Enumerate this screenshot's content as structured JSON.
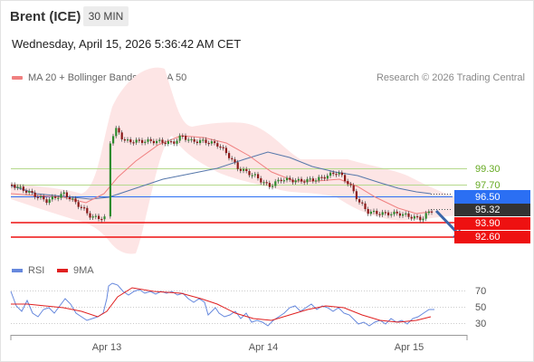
{
  "header": {
    "title": "Brent (ICE)",
    "timeframe": "30 MIN"
  },
  "timestamp": "Wednesday, April 15, 2026 5:36:42 AM CET",
  "legend": {
    "ma20_label": "MA 20 + Bollinger Bands",
    "ma50_label": "MA 50"
  },
  "credit": "Research © 2026 Trading Central",
  "rsi_legend": {
    "rsi_label": "RSI",
    "ma_label": "9MA"
  },
  "colors": {
    "ma20": "#f08080",
    "ma50": "#5577aa",
    "bollinger_fill": "#fde3e3",
    "resistance": "#99cc66",
    "resistance_text": "#66aa22",
    "pivot": "#2b6ff3",
    "support": "#ee1111",
    "current": "#333333",
    "rsi": "#6688dd",
    "rsi_ma": "#e02020"
  },
  "chart_data": {
    "type": "candlestick",
    "price_levels": [
      {
        "label": "99.30",
        "kind": "resistance",
        "value": 99.3
      },
      {
        "label": "97.70",
        "kind": "resistance",
        "value": 97.7
      },
      {
        "label": "96.50",
        "kind": "pivot",
        "value": 96.5
      },
      {
        "label": "95.32",
        "kind": "current",
        "value": 95.32
      },
      {
        "label": "93.90",
        "kind": "support",
        "value": 93.9
      },
      {
        "label": "92.60",
        "kind": "support",
        "value": 92.6
      }
    ],
    "x_labels": [
      "Apr 13",
      "Apr 14",
      "Apr 15"
    ],
    "rsi_ticks": [
      "70",
      "50",
      "30"
    ],
    "forecast": "down"
  }
}
